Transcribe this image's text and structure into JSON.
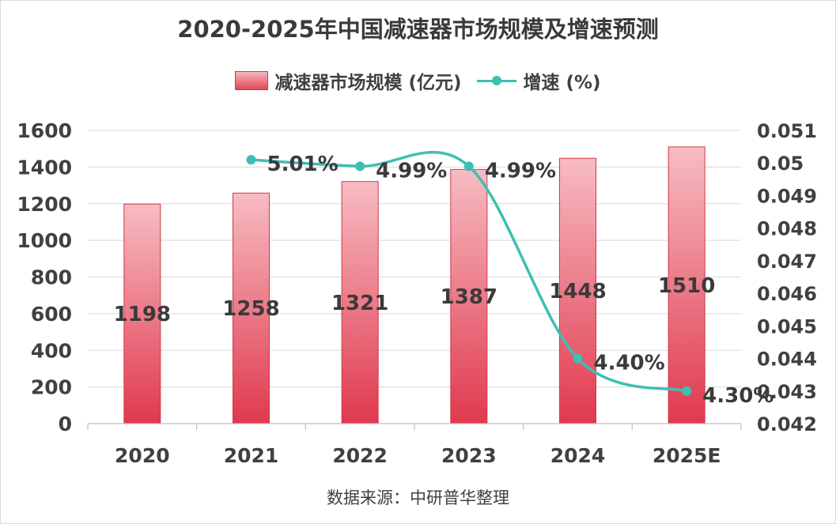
{
  "title": "2020-2025年中国减速器市场规模及增速预测",
  "source_note": "数据来源：中研普华整理",
  "colors": {
    "bar_top": "#f7bcc2",
    "bar_bottom": "#e0394e",
    "bar_edge": "#d4354a",
    "line": "#3dbfb2",
    "axis_text": "#404040",
    "grid": "#d9d9d9"
  },
  "chart_data": {
    "type": "bar",
    "categories": [
      "2020",
      "2021",
      "2022",
      "2023",
      "2024",
      "2025E"
    ],
    "series": [
      {
        "name": "减速器市场规模 (亿元)",
        "type": "bar",
        "axis": "left",
        "values": [
          1198,
          1258,
          1321,
          1387,
          1448,
          1510
        ],
        "labels": [
          "1198",
          "1258",
          "1321",
          "1387",
          "1448",
          "1510"
        ]
      },
      {
        "name": "增速 (%)",
        "type": "line",
        "axis": "right",
        "values": [
          null,
          0.0501,
          0.0499,
          0.0499,
          0.044,
          0.043
        ],
        "labels": [
          "",
          "5.01%",
          "4.99%",
          "4.99%",
          "4.40%",
          "4.30%"
        ]
      }
    ],
    "y_left": {
      "lim": [
        0,
        1600
      ],
      "ticks": [
        "0",
        "200",
        "400",
        "600",
        "800",
        "1000",
        "1200",
        "1400",
        "1600"
      ]
    },
    "y_right": {
      "lim": [
        0.042,
        0.051
      ],
      "ticks": [
        "0.042",
        "0.043",
        "0.044",
        "0.045",
        "0.046",
        "0.047",
        "0.048",
        "0.049",
        "0.05",
        "0.051"
      ]
    },
    "grid": true,
    "legend": "top-center"
  }
}
